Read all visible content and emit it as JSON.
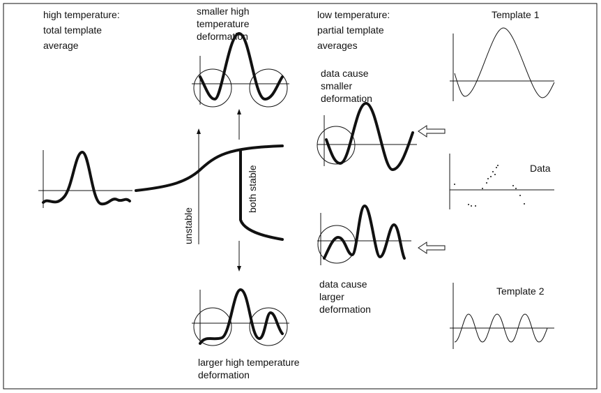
{
  "labels": {
    "high_temp": [
      "high temperature:",
      "total template",
      "average"
    ],
    "smaller_high": [
      "smaller high",
      "temperature",
      "deformation"
    ],
    "low_temp": [
      "low temperature:",
      "partial template",
      "averages"
    ],
    "data_smaller": [
      "data cause",
      "smaller",
      "deformation"
    ],
    "data_larger": [
      "data cause",
      "larger",
      "deformation"
    ],
    "larger_high": [
      "larger high temperature",
      "deformation"
    ],
    "template1": "Template 1",
    "data": "Data",
    "template2": "Template 2",
    "unstable": "unstable",
    "both_stable": "both stable"
  }
}
